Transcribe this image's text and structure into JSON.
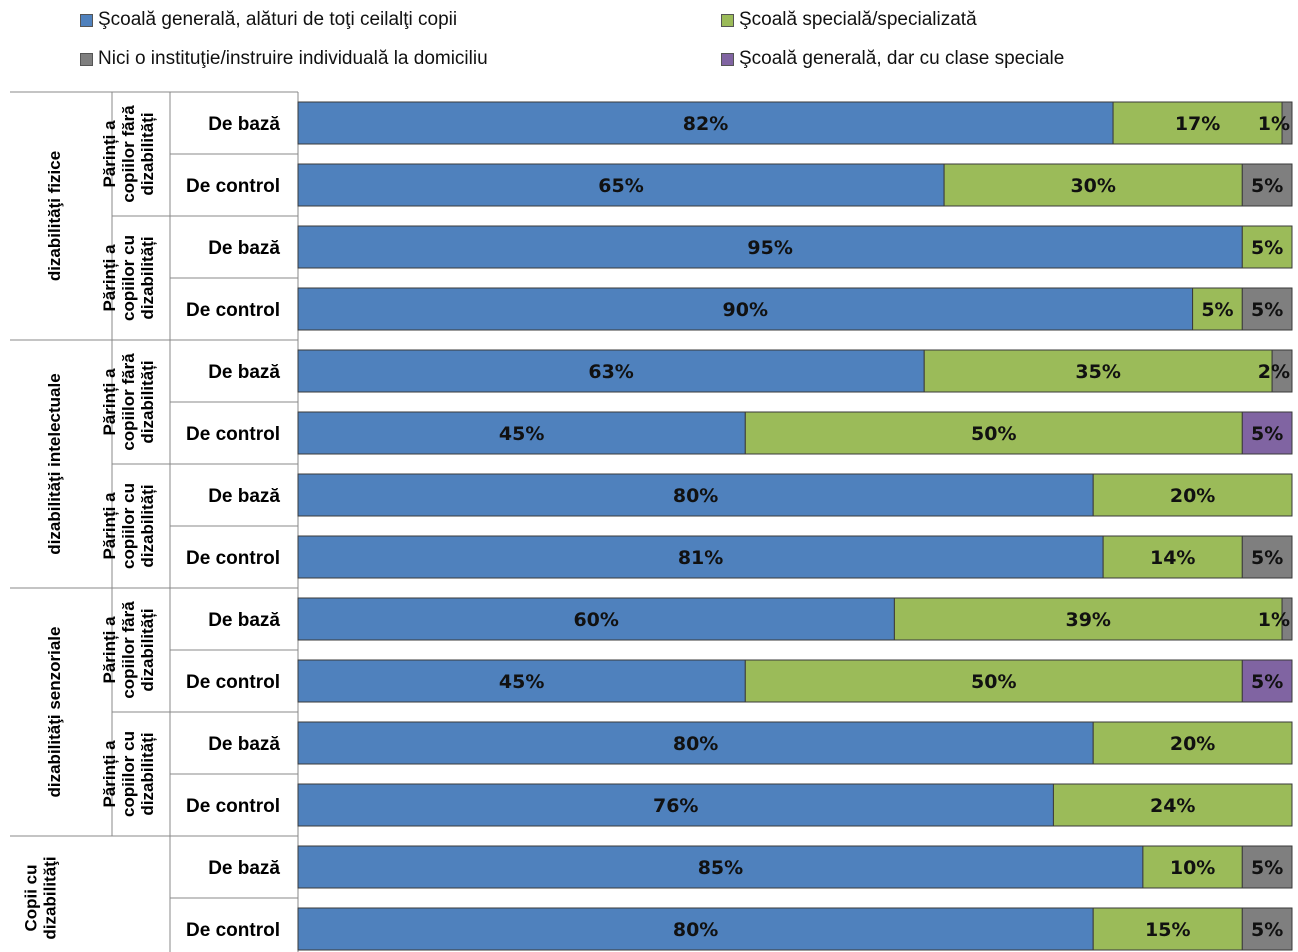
{
  "chart_data": {
    "type": "bar",
    "orientation": "horizontal",
    "stacked": true,
    "xlim": [
      0,
      100
    ],
    "legend_position": "top",
    "series": [
      {
        "name": "Şcoală generală, alături de toţi ceilalţi copii",
        "color": "#4f81bd"
      },
      {
        "name": "Şcoală specială/specializată",
        "color": "#9bbb59"
      },
      {
        "name": "Nici o instituţie/instruire individuală la domiciliu",
        "color": "#7f7f7f"
      },
      {
        "name": "Şcoală generală, dar cu clase speciale",
        "color": "#8064a2"
      }
    ],
    "outer_groups": [
      {
        "label": "dizabilităţi fizice",
        "rows": [
          0,
          3
        ]
      },
      {
        "label": "dizabilităţi intelectuale",
        "rows": [
          4,
          7
        ]
      },
      {
        "label": "dizabilităţi senzoriale",
        "rows": [
          8,
          11
        ]
      },
      {
        "label": "Copii cu dizabilităţi",
        "rows": [
          12,
          13
        ]
      }
    ],
    "sub_groups": [
      {
        "label": "Părinți a copiilor fără dizabilități",
        "rows": [
          0,
          1
        ]
      },
      {
        "label": "Părinți a copiilor cu dizabilități",
        "rows": [
          2,
          3
        ]
      },
      {
        "label": "Părinți a copiilor fără dizabilități",
        "rows": [
          4,
          5
        ]
      },
      {
        "label": "Părinți a copiilor cu dizabilități",
        "rows": [
          6,
          7
        ]
      },
      {
        "label": "Părinți a copiilor fără dizabilități",
        "rows": [
          8,
          9
        ]
      },
      {
        "label": "Părinți a copiilor cu dizabilități",
        "rows": [
          10,
          11
        ]
      }
    ],
    "rows": [
      {
        "category": "De bază",
        "values": [
          82,
          17,
          1,
          0
        ],
        "labels": [
          "82%",
          "17%",
          "1%",
          ""
        ]
      },
      {
        "category": "De control",
        "values": [
          65,
          30,
          5,
          0
        ],
        "labels": [
          "65%",
          "30%",
          "5%",
          ""
        ]
      },
      {
        "category": "De bază",
        "values": [
          95,
          5,
          0,
          0
        ],
        "labels": [
          "95%",
          "5%",
          "",
          ""
        ]
      },
      {
        "category": "De control",
        "values": [
          90,
          5,
          5,
          0
        ],
        "labels": [
          "90%",
          "5%",
          "5%",
          ""
        ]
      },
      {
        "category": "De bază",
        "values": [
          63,
          35,
          2,
          0
        ],
        "labels": [
          "63%",
          "35%",
          "2%",
          ""
        ]
      },
      {
        "category": "De control",
        "values": [
          45,
          50,
          0,
          5
        ],
        "labels": [
          "45%",
          "50%",
          "",
          "5%"
        ]
      },
      {
        "category": "De bază",
        "values": [
          80,
          20,
          0,
          0
        ],
        "labels": [
          "80%",
          "20%",
          "",
          ""
        ]
      },
      {
        "category": "De control",
        "values": [
          81,
          14,
          5,
          0
        ],
        "labels": [
          "81%",
          "14%",
          "5%",
          ""
        ]
      },
      {
        "category": "De bază",
        "values": [
          60,
          39,
          1,
          0
        ],
        "labels": [
          "60%",
          "39%",
          "1%",
          ""
        ]
      },
      {
        "category": "De control",
        "values": [
          45,
          50,
          0,
          5
        ],
        "labels": [
          "45%",
          "50%",
          "",
          "5%"
        ]
      },
      {
        "category": "De bază",
        "values": [
          80,
          20,
          0,
          0
        ],
        "labels": [
          "80%",
          "20%",
          "",
          ""
        ]
      },
      {
        "category": "De control",
        "values": [
          76,
          24,
          0,
          0
        ],
        "labels": [
          "76%",
          "24%",
          "",
          ""
        ]
      },
      {
        "category": "De bază",
        "values": [
          85,
          10,
          5,
          0
        ],
        "labels": [
          "85%",
          "10%",
          "5%",
          ""
        ]
      },
      {
        "category": "De control",
        "values": [
          80,
          15,
          5,
          0
        ],
        "labels": [
          "80%",
          "15%",
          "5%",
          ""
        ]
      }
    ]
  }
}
